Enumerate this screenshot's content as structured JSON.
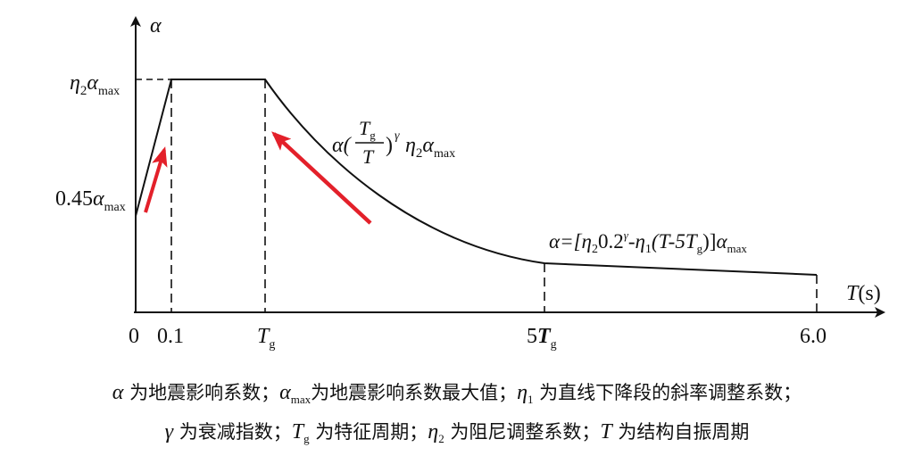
{
  "axes": {
    "y_label": "α",
    "x_label_italic": "T",
    "x_label_unit": "(s)"
  },
  "y_ticks": {
    "top_eta": "η",
    "top_sub2": "2",
    "top_alpha": "α",
    "top_sub_max": "max",
    "mid_num": "0.45",
    "mid_alpha": "α",
    "mid_sub_max": "max"
  },
  "x_ticks": {
    "zero": "0",
    "t01": "0.1",
    "tg_T": "T",
    "tg_sub": "g",
    "five_tg_num": "5",
    "five_tg_T": "T",
    "five_tg_sub": "g",
    "six": "6.0"
  },
  "formula_curve": {
    "alpha": "α(",
    "frac_num_T": "T",
    "frac_num_sub": "g",
    "frac_den": "T",
    "close": ")",
    "exp": "γ",
    "eta": "η",
    "eta_sub": "2",
    "alpha2": "α",
    "alpha2_sub": "max"
  },
  "formula_line": {
    "lhs": "α=[",
    "eta2": "η",
    "eta2_sub": "2",
    "coef": "0.2",
    "exp": "γ",
    "minus_eta1": "-η",
    "eta1_sub": "1",
    "paren": "(T-5",
    "tg_T": "T",
    "tg_sub": "g",
    "close": ")]",
    "alpha": "α",
    "alpha_sub": "max"
  },
  "notes": {
    "line1": {
      "a1": "α",
      "t1": " 为地震影响系数；",
      "a2": "α",
      "a2_sub": "max",
      "t2": "为地震影响系数最大值；",
      "e1": "η",
      "e1_sub": "1",
      "t3": " 为直线下降段的斜率调整系数；"
    },
    "line2": {
      "g": "γ",
      "t1": " 为衰减指数；",
      "tg": "T",
      "tg_sub": "g",
      "t2": " 为特征周期；",
      "e2": "η",
      "e2_sub": "2",
      "t3": " 为阻尼调整系数；",
      "tt": "T",
      "t4": " 为结构自振周期"
    }
  },
  "colors": {
    "curve": "#111111",
    "arrow": "#e3202a"
  }
}
